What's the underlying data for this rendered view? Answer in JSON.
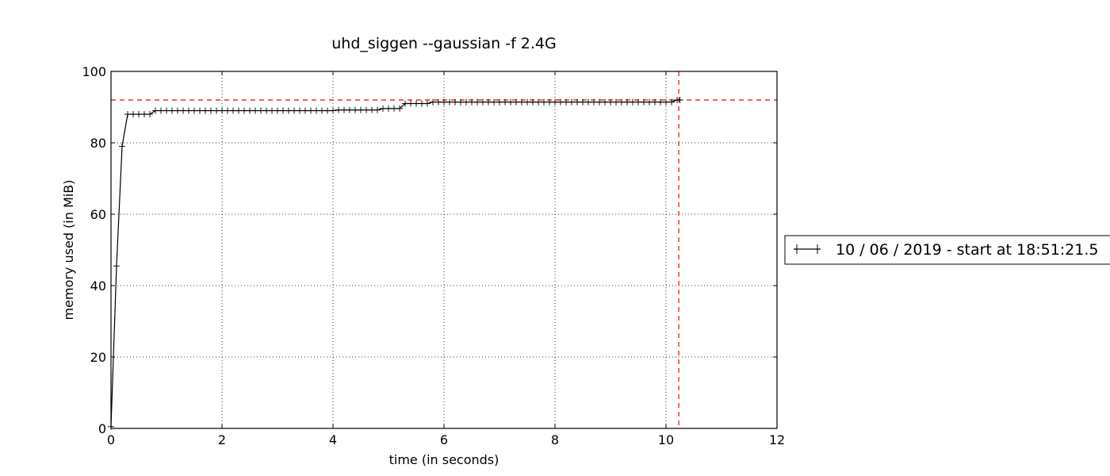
{
  "chart_data": {
    "type": "line",
    "title": "uhd_siggen --gaussian -f 2.4G",
    "xlabel": "time (in seconds)",
    "ylabel": "memory used (in MiB)",
    "xlim": [
      0,
      12
    ],
    "ylim": [
      0,
      100
    ],
    "xticks": [
      0,
      2,
      4,
      6,
      8,
      10,
      12
    ],
    "yticks": [
      0,
      20,
      40,
      60,
      80,
      100
    ],
    "xtick_labels": [
      "0",
      "2",
      "4",
      "6",
      "8",
      "10",
      "12"
    ],
    "ytick_labels": [
      "0",
      "20",
      "40",
      "60",
      "80",
      "100"
    ],
    "grid": true,
    "legend": {
      "position": "right",
      "entries": [
        "10 / 06 / 2019 - start at 18:51:21.5"
      ]
    },
    "series": [
      {
        "name": "10 / 06 / 2019 - start at 18:51:21.5",
        "color": "#000000",
        "marker": "+",
        "x": [
          0.0,
          0.1,
          0.2,
          0.3,
          0.4,
          0.5,
          0.6,
          0.7,
          0.8,
          0.9,
          1.0,
          1.1,
          1.2,
          1.3,
          1.4,
          1.5,
          1.6,
          1.7,
          1.8,
          1.9,
          2.0,
          2.1,
          2.2,
          2.3,
          2.4,
          2.5,
          2.6,
          2.7,
          2.8,
          2.9,
          3.0,
          3.1,
          3.2,
          3.3,
          3.4,
          3.5,
          3.6,
          3.7,
          3.8,
          3.9,
          4.0,
          4.1,
          4.2,
          4.3,
          4.4,
          4.5,
          4.6,
          4.7,
          4.8,
          4.9,
          5.0,
          5.1,
          5.2,
          5.3,
          5.4,
          5.5,
          5.6,
          5.7,
          5.8,
          5.9,
          6.0,
          6.1,
          6.2,
          6.3,
          6.4,
          6.5,
          6.6,
          6.7,
          6.8,
          6.9,
          7.0,
          7.1,
          7.2,
          7.3,
          7.4,
          7.5,
          7.6,
          7.7,
          7.8,
          7.9,
          8.0,
          8.1,
          8.2,
          8.3,
          8.4,
          8.5,
          8.6,
          8.7,
          8.8,
          8.9,
          9.0,
          9.1,
          9.2,
          9.3,
          9.4,
          9.5,
          9.6,
          9.7,
          9.8,
          9.9,
          10.0,
          10.1,
          10.2,
          10.25
        ],
        "values": [
          0.5,
          45.5,
          79.0,
          88.0,
          88.0,
          88.0,
          88.0,
          88.0,
          89.0,
          89.0,
          89.0,
          89.0,
          89.0,
          89.0,
          89.0,
          89.0,
          89.0,
          89.0,
          89.0,
          89.0,
          89.0,
          89.0,
          89.0,
          89.0,
          89.0,
          89.0,
          89.0,
          89.0,
          89.0,
          89.0,
          89.0,
          89.0,
          89.0,
          89.0,
          89.0,
          89.0,
          89.0,
          89.0,
          89.0,
          89.0,
          89.0,
          89.2,
          89.2,
          89.2,
          89.2,
          89.2,
          89.2,
          89.2,
          89.2,
          89.6,
          89.6,
          89.6,
          89.6,
          91.0,
          91.0,
          91.0,
          91.0,
          91.0,
          91.4,
          91.4,
          91.4,
          91.4,
          91.4,
          91.4,
          91.4,
          91.4,
          91.4,
          91.4,
          91.4,
          91.4,
          91.4,
          91.4,
          91.4,
          91.4,
          91.4,
          91.4,
          91.4,
          91.4,
          91.4,
          91.4,
          91.4,
          91.4,
          91.4,
          91.4,
          91.4,
          91.4,
          91.4,
          91.4,
          91.4,
          91.4,
          91.4,
          91.4,
          91.4,
          91.4,
          91.4,
          91.4,
          91.4,
          91.4,
          91.4,
          91.4,
          91.4,
          91.4,
          92.0,
          92.0
        ]
      }
    ],
    "reference_lines": [
      {
        "orientation": "horizontal",
        "value": 92.0,
        "color": "#ff0000",
        "style": "dashed"
      },
      {
        "orientation": "vertical",
        "value": 10.23,
        "color": "#ff0000",
        "style": "dashed"
      }
    ]
  }
}
